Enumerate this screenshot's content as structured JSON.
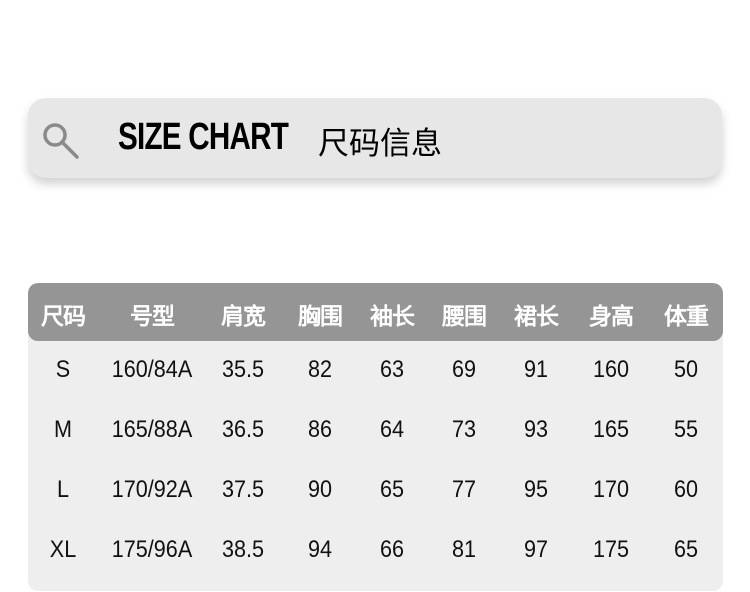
{
  "header": {
    "title_en": "SIZE CHART",
    "title_cn": "尺码信息",
    "icon": "search-icon"
  },
  "colors": {
    "header_bg": "#959595",
    "table_bg": "#eeeeee",
    "bar_bg": "#e7e7e7"
  },
  "table": {
    "columns": [
      "尺码",
      "号型",
      "肩宽",
      "胸围",
      "袖长",
      "腰围",
      "裙长",
      "身高",
      "体重"
    ],
    "rows": [
      [
        "S",
        "160/84A",
        "35.5",
        "82",
        "63",
        "69",
        "91",
        "160",
        "50"
      ],
      [
        "M",
        "165/88A",
        "36.5",
        "86",
        "64",
        "73",
        "93",
        "165",
        "55"
      ],
      [
        "L",
        "170/92A",
        "37.5",
        "90",
        "65",
        "77",
        "95",
        "170",
        "60"
      ],
      [
        "XL",
        "175/96A",
        "38.5",
        "94",
        "66",
        "81",
        "97",
        "175",
        "65"
      ]
    ]
  }
}
